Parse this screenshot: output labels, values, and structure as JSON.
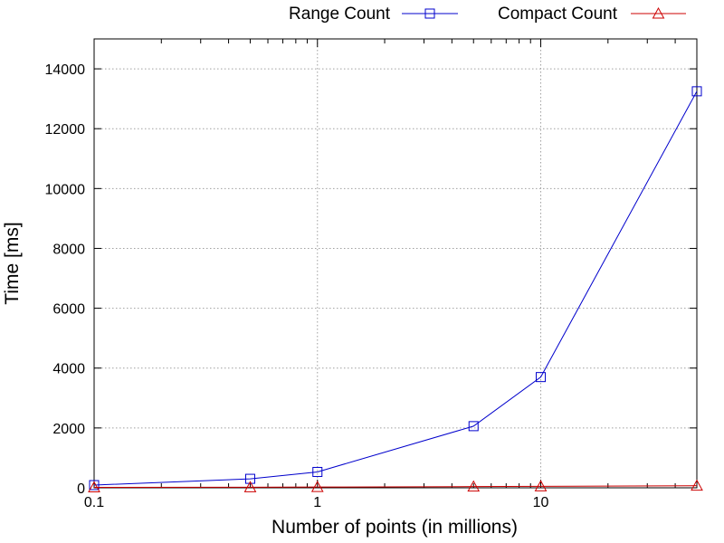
{
  "chart_data": {
    "type": "line",
    "title": "",
    "xlabel": "Number of points (in millions)",
    "ylabel": "Time [ms]",
    "xscale": "log",
    "xlim": [
      0.1,
      50
    ],
    "ylim": [
      0,
      15000
    ],
    "grid": true,
    "legend_position": "top-right",
    "x_ticks": [
      {
        "value": 0.1,
        "label": "0.1"
      },
      {
        "value": 1,
        "label": "1"
      },
      {
        "value": 10,
        "label": "10"
      }
    ],
    "y_ticks": [
      {
        "value": 0,
        "label": "0"
      },
      {
        "value": 2000,
        "label": "2000"
      },
      {
        "value": 4000,
        "label": "4000"
      },
      {
        "value": 6000,
        "label": "6000"
      },
      {
        "value": 8000,
        "label": "8000"
      },
      {
        "value": 10000,
        "label": "10000"
      },
      {
        "value": 12000,
        "label": "12000"
      },
      {
        "value": 14000,
        "label": "14000"
      }
    ],
    "x": [
      0.1,
      0.5,
      1,
      5,
      10,
      50
    ],
    "series": [
      {
        "name": "Range Count",
        "color": "#0000cc",
        "marker": "square",
        "values": [
          90,
          300,
          530,
          2060,
          3700,
          13250
        ]
      },
      {
        "name": "Compact Count",
        "color": "#cc0000",
        "marker": "triangle",
        "values": [
          15,
          20,
          25,
          40,
          50,
          70
        ]
      }
    ]
  }
}
